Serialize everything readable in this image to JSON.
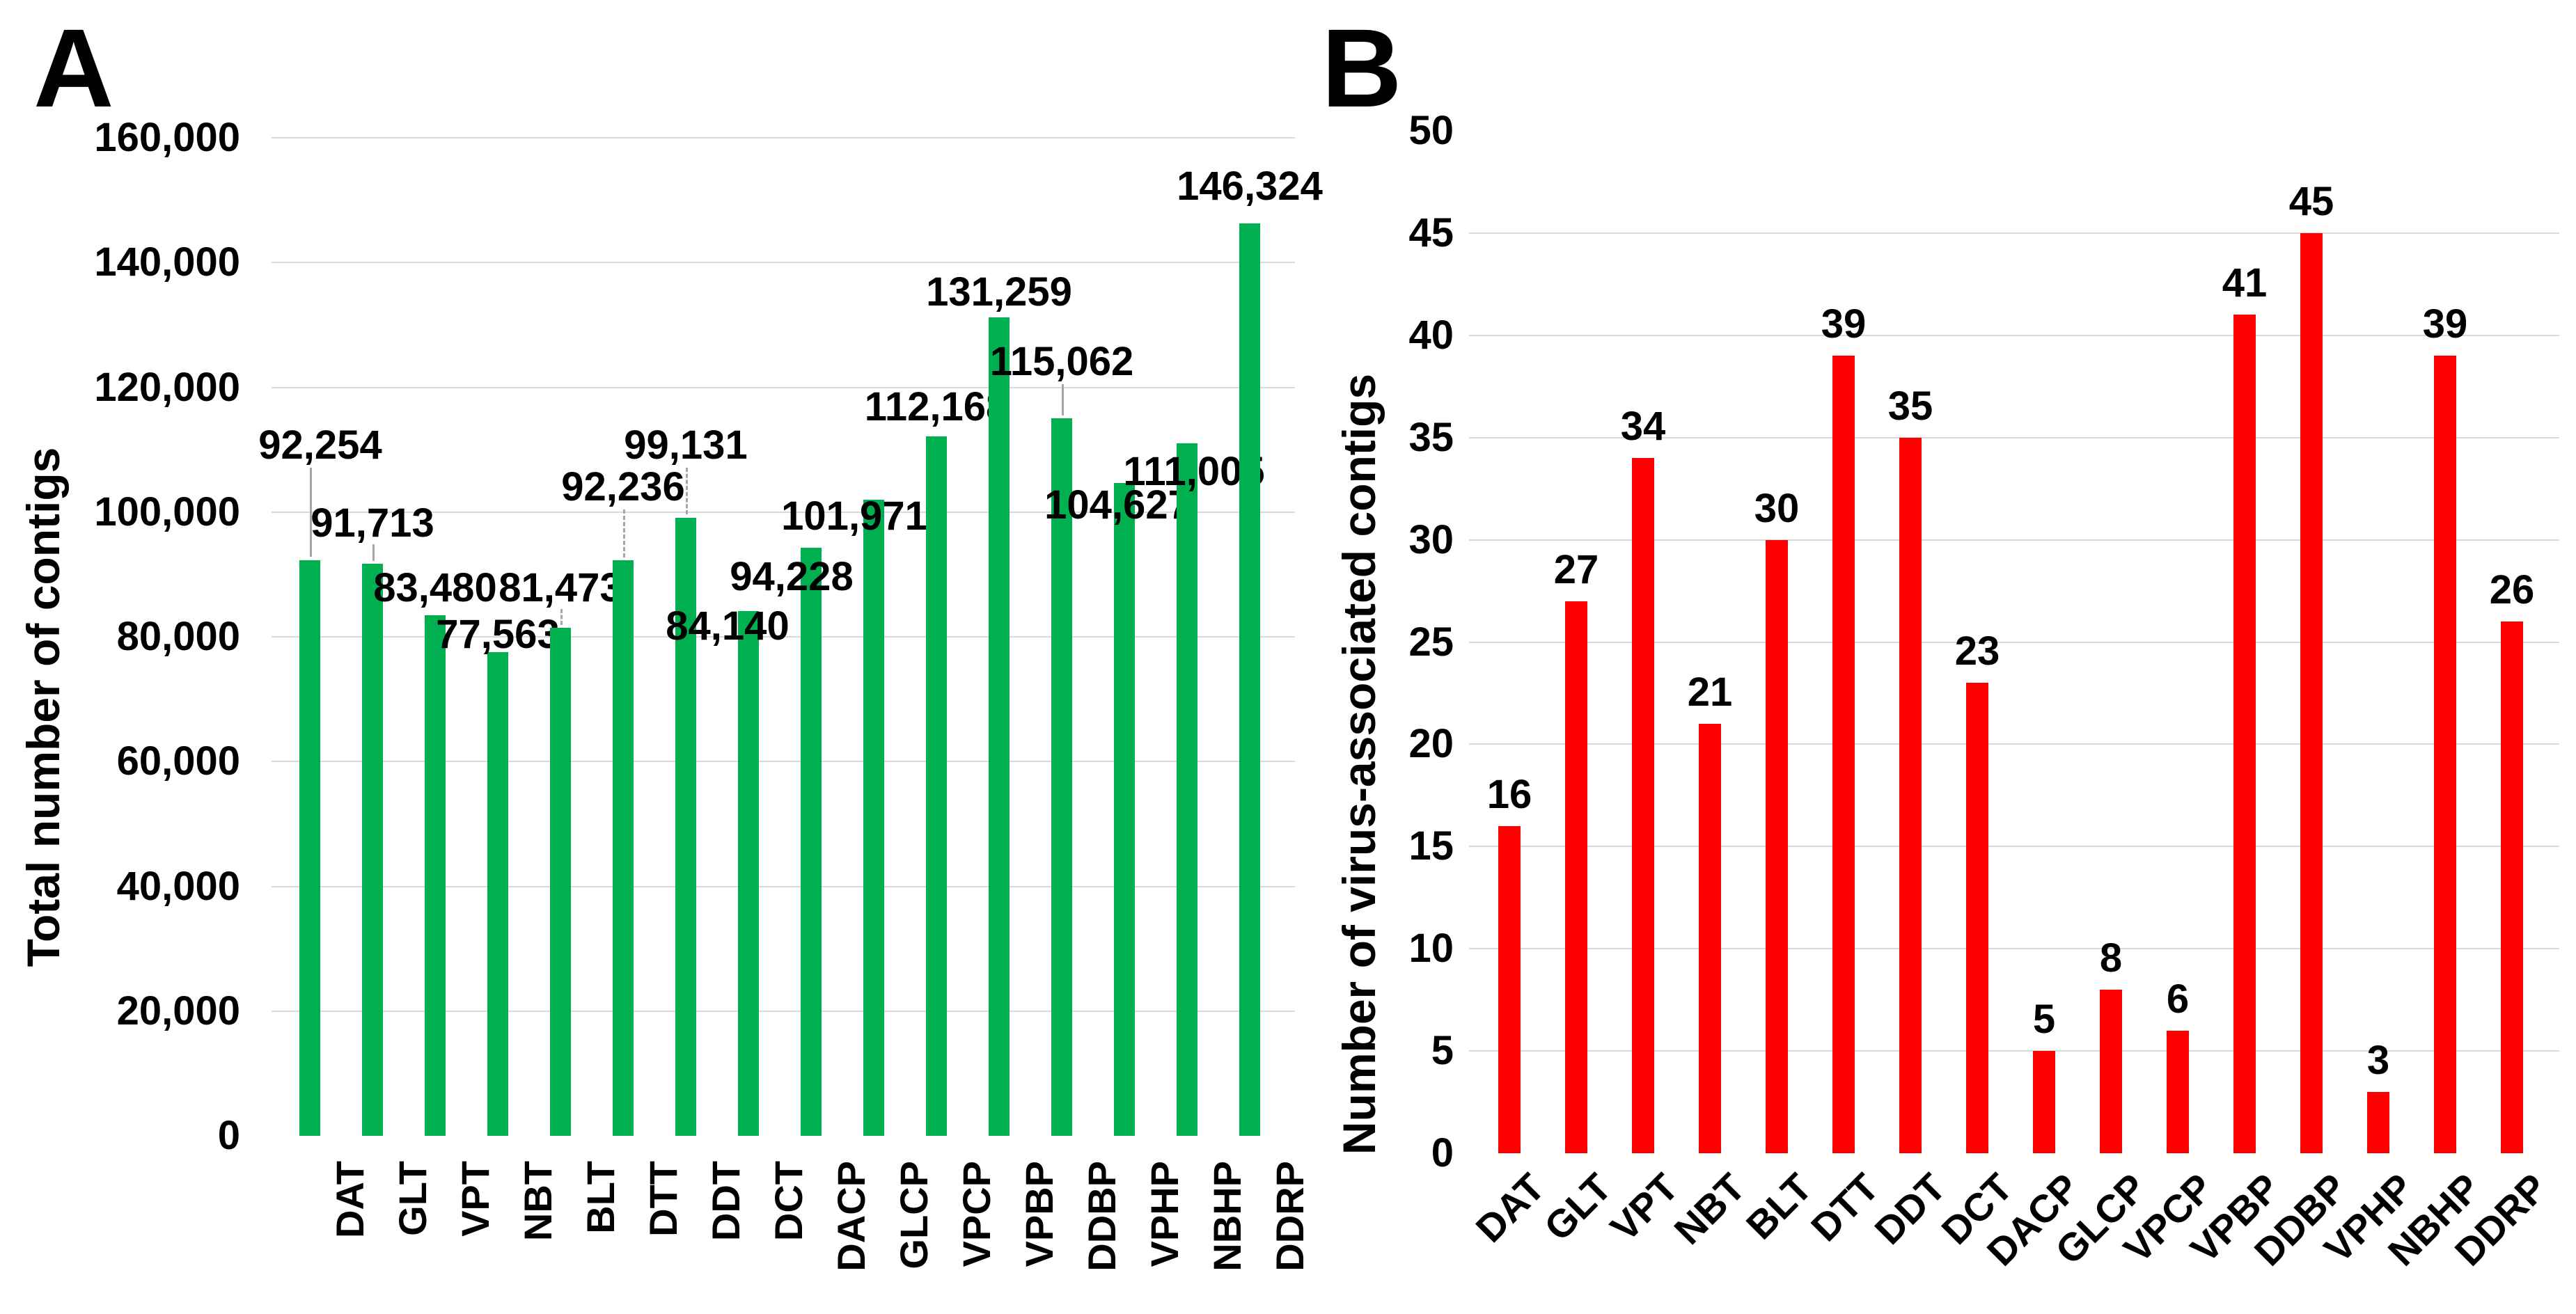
{
  "chart_data": [
    {
      "type": "bar",
      "panel_letter": "A",
      "title": "",
      "xlabel": "",
      "ylabel": "Total number of contigs",
      "categories": [
        "DAT",
        "GLT",
        "VPT",
        "NBT",
        "BLT",
        "DTT",
        "DDT",
        "DCT",
        "DACP",
        "GLCP",
        "VPCP",
        "VPBP",
        "DDBP",
        "VPHP",
        "NBHP",
        "DDRP"
      ],
      "values": [
        92254,
        91713,
        83480,
        77563,
        81473,
        92236,
        99131,
        84140,
        94228,
        101971,
        112168,
        131259,
        115062,
        104627,
        111005,
        146324
      ],
      "value_labels": [
        "92,254",
        "91,713",
        "83,480",
        "77,563",
        "81,473",
        "92,236",
        "99,131",
        "84,140",
        "94,228",
        "101,971",
        "112,168",
        "131,259",
        "115,062",
        "104,627",
        "111,005",
        "146,324"
      ],
      "ylim": [
        0,
        160000
      ],
      "ytick_step": 20000,
      "y_tick_labels": [
        "0",
        "20,000",
        "40,000",
        "60,000",
        "80,000",
        "100,000",
        "120,000",
        "140,000",
        "160,000"
      ],
      "bar_color": "#00B050",
      "gridline_color": "#D9D9D9",
      "grid": true,
      "top_gridline": true,
      "category_label_rotation": -90,
      "legend": "none"
    },
    {
      "type": "bar",
      "panel_letter": "B",
      "title": "",
      "xlabel": "",
      "ylabel": "Number of virus-associated contigs",
      "categories": [
        "DAT",
        "GLT",
        "VPT",
        "NBT",
        "BLT",
        "DTT",
        "DDT",
        "DCT",
        "DACP",
        "GLCP",
        "VPCP",
        "VPBP",
        "DDBP",
        "VPHP",
        "NBHP",
        "DDRP"
      ],
      "values": [
        16,
        27,
        34,
        21,
        30,
        39,
        35,
        23,
        5,
        8,
        6,
        41,
        45,
        3,
        39,
        26
      ],
      "value_labels": [
        "16",
        "27",
        "34",
        "21",
        "30",
        "39",
        "35",
        "23",
        "5",
        "8",
        "6",
        "41",
        "45",
        "3",
        "39",
        "26"
      ],
      "ylim": [
        0,
        50
      ],
      "ytick_step": 5,
      "y_tick_labels": [
        "0",
        "5",
        "10",
        "15",
        "20",
        "25",
        "30",
        "35",
        "40",
        "45",
        "50"
      ],
      "bar_color": "#FF0000",
      "gridline_color": "#D9D9D9",
      "grid": true,
      "top_gridline": false,
      "category_label_rotation": -45,
      "legend": "none"
    }
  ]
}
